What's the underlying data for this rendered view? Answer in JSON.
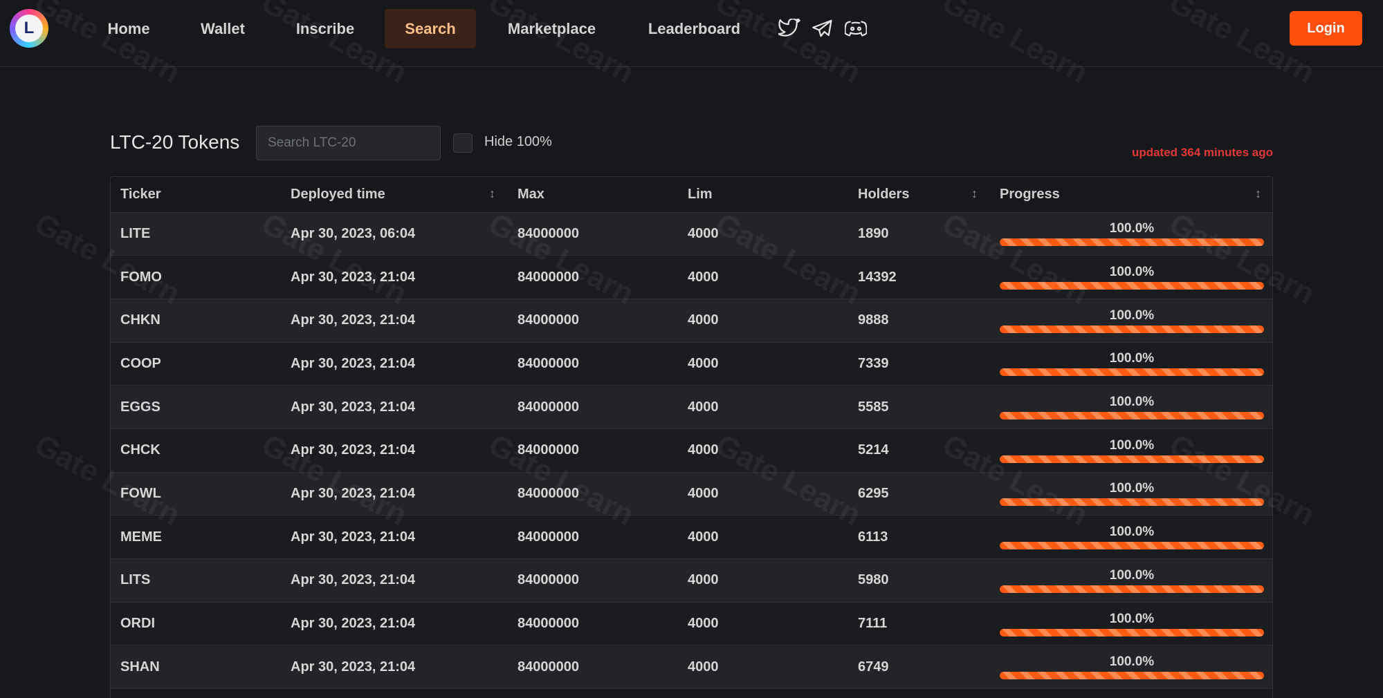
{
  "nav": {
    "logo_letter": "L",
    "items": [
      {
        "label": "Home",
        "active": false
      },
      {
        "label": "Wallet",
        "active": false
      },
      {
        "label": "Inscribe",
        "active": false
      },
      {
        "label": "Search",
        "active": true
      },
      {
        "label": "Marketplace",
        "active": false
      },
      {
        "label": "Leaderboard",
        "active": false
      }
    ],
    "social": [
      "twitter-icon",
      "telegram-icon",
      "discord-icon"
    ],
    "login_label": "Login"
  },
  "toolbar": {
    "title": "LTC-20 Tokens",
    "search_placeholder": "Search LTC-20",
    "search_value": "",
    "hide_label": "Hide 100%",
    "hide_checked": false,
    "updated_text": "updated 364 minutes ago"
  },
  "table": {
    "headers": {
      "ticker": "Ticker",
      "deployed": "Deployed time",
      "max": "Max",
      "lim": "Lim",
      "holders": "Holders",
      "progress": "Progress"
    },
    "rows": [
      {
        "ticker": "LITE",
        "deployed": "Apr 30, 2023, 06:04",
        "max": "84000000",
        "lim": "4000",
        "holders": "1890",
        "progress_label": "100.0%",
        "progress": 1.0
      },
      {
        "ticker": "FOMO",
        "deployed": "Apr 30, 2023, 21:04",
        "max": "84000000",
        "lim": "4000",
        "holders": "14392",
        "progress_label": "100.0%",
        "progress": 1.0
      },
      {
        "ticker": "CHKN",
        "deployed": "Apr 30, 2023, 21:04",
        "max": "84000000",
        "lim": "4000",
        "holders": "9888",
        "progress_label": "100.0%",
        "progress": 1.0
      },
      {
        "ticker": "COOP",
        "deployed": "Apr 30, 2023, 21:04",
        "max": "84000000",
        "lim": "4000",
        "holders": "7339",
        "progress_label": "100.0%",
        "progress": 1.0
      },
      {
        "ticker": "EGGS",
        "deployed": "Apr 30, 2023, 21:04",
        "max": "84000000",
        "lim": "4000",
        "holders": "5585",
        "progress_label": "100.0%",
        "progress": 1.0
      },
      {
        "ticker": "CHCK",
        "deployed": "Apr 30, 2023, 21:04",
        "max": "84000000",
        "lim": "4000",
        "holders": "5214",
        "progress_label": "100.0%",
        "progress": 1.0
      },
      {
        "ticker": "FOWL",
        "deployed": "Apr 30, 2023, 21:04",
        "max": "84000000",
        "lim": "4000",
        "holders": "6295",
        "progress_label": "100.0%",
        "progress": 1.0
      },
      {
        "ticker": "MEME",
        "deployed": "Apr 30, 2023, 21:04",
        "max": "84000000",
        "lim": "4000",
        "holders": "6113",
        "progress_label": "100.0%",
        "progress": 1.0
      },
      {
        "ticker": "LITS",
        "deployed": "Apr 30, 2023, 21:04",
        "max": "84000000",
        "lim": "4000",
        "holders": "5980",
        "progress_label": "100.0%",
        "progress": 1.0
      },
      {
        "ticker": "ORDI",
        "deployed": "Apr 30, 2023, 21:04",
        "max": "84000000",
        "lim": "4000",
        "holders": "7111",
        "progress_label": "100.0%",
        "progress": 1.0
      },
      {
        "ticker": "SHAN",
        "deployed": "Apr 30, 2023, 21:04",
        "max": "84000000",
        "lim": "4000",
        "holders": "6749",
        "progress_label": "100.0%",
        "progress": 1.0
      }
    ]
  },
  "watermark": {
    "text": "Gate Learn"
  },
  "colors": {
    "accent": "#ff4f0f",
    "updated": "#e2383a",
    "active_nav_bg": "#3a2218",
    "active_nav_text": "#ffbf8a"
  }
}
